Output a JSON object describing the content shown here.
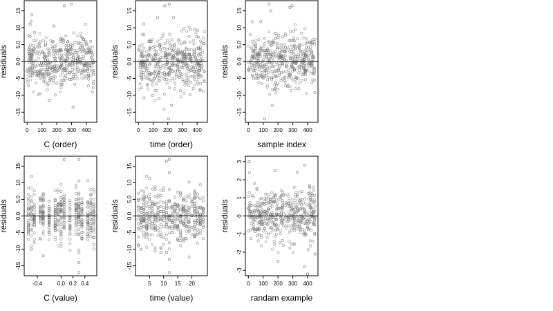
{
  "figure": {
    "panels": [
      {
        "id": "c-order",
        "xlabel": "C (order)",
        "ylabel": "residuals"
      },
      {
        "id": "time-order",
        "xlabel": "time (order)",
        "ylabel": "residuals"
      },
      {
        "id": "sample-index",
        "xlabel": "sample index",
        "ylabel": "residuals"
      },
      {
        "id": "c-value",
        "xlabel": "C (value)",
        "ylabel": "residuals"
      },
      {
        "id": "time-value",
        "xlabel": "time (value)",
        "ylabel": "residuals"
      },
      {
        "id": "random-example",
        "xlabel": "randam example",
        "ylabel": "residuals"
      }
    ]
  },
  "chart_data": [
    {
      "type": "scatter",
      "xlabel": "C (order)",
      "ylabel": "residuals",
      "xlim": [
        -20,
        470
      ],
      "ylim": [
        -18,
        18
      ],
      "xticks": [
        0,
        100,
        200,
        300,
        400
      ],
      "xticklabels": [
        "0",
        "100",
        "200",
        "300",
        "400"
      ],
      "yticks": [
        -15,
        -10,
        -5,
        0,
        5,
        10,
        15
      ],
      "yticklabels": [
        "-15",
        "-10",
        "-5",
        "0.0",
        "5.0",
        "10",
        "15"
      ],
      "hline": 0,
      "grid": false,
      "n": 450,
      "x_range": [
        0,
        450
      ],
      "y_spread": 5,
      "seed": 11,
      "x_mode": "continuous",
      "highlights": [
        [
          250,
          16.5
        ],
        [
          300,
          17
        ],
        [
          20,
          11
        ],
        [
          180,
          10.5
        ],
        [
          310,
          -13.5
        ],
        [
          150,
          -11.5
        ],
        [
          85,
          -9.5
        ],
        [
          440,
          -9
        ]
      ]
    },
    {
      "type": "scatter",
      "xlabel": "time (order)",
      "ylabel": "residuals",
      "xlim": [
        -20,
        470
      ],
      "ylim": [
        -18,
        18
      ],
      "xticks": [
        0,
        100,
        200,
        300,
        400
      ],
      "xticklabels": [
        "0",
        "100",
        "200",
        "300",
        "400"
      ],
      "yticks": [
        -15,
        -10,
        -5,
        0,
        5,
        10,
        15
      ],
      "yticklabels": [
        "-15",
        "-10",
        "-5",
        "0.0",
        "5.0",
        "10",
        "15"
      ],
      "hline": 0,
      "grid": false,
      "n": 450,
      "x_range": [
        0,
        450
      ],
      "y_spread": 5,
      "seed": 23,
      "x_mode": "continuous",
      "highlights": [
        [
          180,
          16.5
        ],
        [
          210,
          17
        ],
        [
          130,
          13
        ],
        [
          240,
          13
        ],
        [
          205,
          -17
        ],
        [
          225,
          -13
        ],
        [
          140,
          -11
        ],
        [
          95,
          -10
        ]
      ]
    },
    {
      "type": "scatter",
      "xlabel": "sample index",
      "ylabel": "residuals",
      "xlim": [
        -20,
        470
      ],
      "ylim": [
        -18,
        18
      ],
      "xticks": [
        0,
        100,
        200,
        300,
        400
      ],
      "xticklabels": [
        "0",
        "100",
        "200",
        "300",
        "400"
      ],
      "yticks": [
        -15,
        -10,
        -5,
        0,
        5,
        10,
        15
      ],
      "yticklabels": [
        "-15",
        "-10",
        "-5",
        "0.0",
        "5.0",
        "10",
        "15"
      ],
      "hline": 0,
      "grid": false,
      "n": 450,
      "x_range": [
        0,
        450
      ],
      "y_spread": 5,
      "seed": 37,
      "x_mode": "continuous",
      "highlights": [
        [
          140,
          17
        ],
        [
          150,
          15
        ],
        [
          280,
          16
        ],
        [
          295,
          16.5
        ],
        [
          110,
          -17
        ],
        [
          160,
          -13
        ],
        [
          180,
          -8
        ],
        [
          190,
          -7
        ]
      ]
    },
    {
      "type": "scatter",
      "xlabel": "C (value)",
      "ylabel": "residuals",
      "xlim": [
        -0.62,
        0.6
      ],
      "ylim": [
        -18,
        18
      ],
      "xticks": [
        -0.4,
        0.0,
        0.2,
        0.4
      ],
      "xticklabels": [
        "-0.4",
        "0.0",
        "0.2",
        "0.4"
      ],
      "yticks": [
        -15,
        -10,
        -5,
        0,
        5,
        10,
        15
      ],
      "yticklabels": [
        "-15",
        "-10",
        "-5",
        "0.0",
        "5.0",
        "10",
        "15"
      ],
      "hline": 0,
      "grid": false,
      "n": 450,
      "x_range": [
        -0.55,
        0.55
      ],
      "y_spread": 5,
      "seed": 53,
      "x_mode": "discrete",
      "x_levels": [
        -0.55,
        -0.5,
        -0.45,
        -0.35,
        -0.3,
        -0.2,
        -0.1,
        -0.05,
        0.0,
        0.05,
        0.15,
        0.25,
        0.3,
        0.35,
        0.45,
        0.5,
        0.55
      ],
      "highlights": [
        [
          0.05,
          17
        ],
        [
          0.3,
          17
        ],
        [
          -0.5,
          12
        ],
        [
          0.3,
          10.5
        ],
        [
          0.3,
          -17
        ],
        [
          -0.3,
          -12
        ],
        [
          0.3,
          -14
        ],
        [
          -0.5,
          -10
        ]
      ]
    },
    {
      "type": "scatter",
      "xlabel": "time (value)",
      "ylabel": "residuals",
      "xlim": [
        0,
        25.5
      ],
      "ylim": [
        -18,
        18
      ],
      "xticks": [
        5,
        10,
        15,
        20
      ],
      "xticklabels": [
        "5",
        "10",
        "15",
        "20"
      ],
      "yticks": [
        -15,
        -10,
        -5,
        0,
        5,
        10,
        15
      ],
      "yticklabels": [
        "-15",
        "-10",
        "-5",
        "0.0",
        "5.0",
        "10",
        "15"
      ],
      "hline": 0,
      "grid": false,
      "n": 450,
      "x_range": [
        1,
        24
      ],
      "y_spread": 5,
      "seed": 71,
      "x_mode": "discrete",
      "x_levels": [
        1,
        2,
        3,
        4,
        5,
        6,
        7,
        8,
        9,
        10,
        11,
        12,
        13,
        14,
        15,
        16,
        17,
        18,
        19,
        20,
        21,
        22,
        23,
        24
      ],
      "highlights": [
        [
          11,
          16.5
        ],
        [
          12,
          17
        ],
        [
          12,
          13
        ],
        [
          4,
          12
        ],
        [
          12,
          -17
        ],
        [
          12,
          -13
        ],
        [
          11,
          -11
        ],
        [
          9,
          -11
        ]
      ]
    },
    {
      "type": "scatter",
      "xlabel": "randam example",
      "ylabel": "residuals",
      "xlim": [
        -20,
        470
      ],
      "ylim": [
        -3.3,
        3.3
      ],
      "xticks": [
        0,
        100,
        200,
        300,
        400
      ],
      "xticklabels": [
        "0",
        "100",
        "200",
        "300",
        "400"
      ],
      "yticks": [
        -3,
        -2,
        -1,
        0,
        1,
        2,
        3
      ],
      "yticklabels": [
        "-3",
        "-2",
        "-1",
        "0",
        "1",
        "2",
        "3"
      ],
      "hline": 0,
      "grid": false,
      "n": 450,
      "x_range": [
        0,
        450
      ],
      "y_spread": 1,
      "seed": 97,
      "x_mode": "continuous",
      "highlights": [
        [
          5,
          3
        ],
        [
          380,
          2.8
        ],
        [
          180,
          2.5
        ],
        [
          330,
          2.4
        ],
        [
          380,
          -2.8
        ],
        [
          400,
          -3.2
        ],
        [
          200,
          -2.5
        ],
        [
          450,
          -2.1
        ]
      ]
    }
  ]
}
